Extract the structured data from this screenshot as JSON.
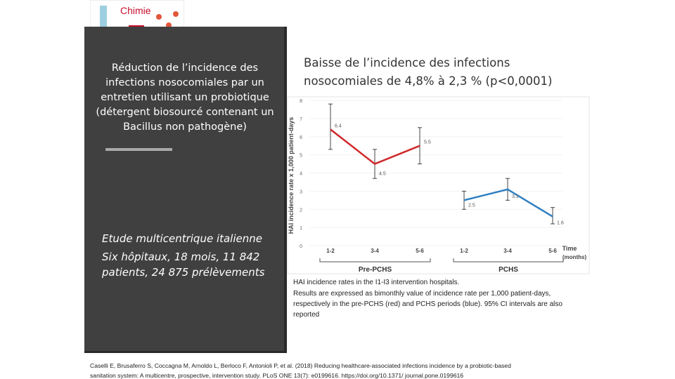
{
  "logo": {
    "label": "Chimie"
  },
  "panel": {
    "summary": "Réduction de l’incidence des infections nosocomiales par un entretien utilisant un probiotique (détergent biosourcé contenant un Bacillus non pathogène)",
    "study": [
      "Etude multicentrique italienne",
      "Six hôpitaux, 18 mois, 11 842",
      "patients, 24 875 prélèvements"
    ]
  },
  "title": [
    "Baisse de l’incidence des infections",
    "nosocomiales de 4,8% à 2,3 % (p<0,0001)"
  ],
  "chart_data": {
    "type": "line",
    "ylabel": "HAI incidence rate x 1,000 patient-days",
    "xlabel": "Time",
    "xlabel_unit": "(months)",
    "categories": [
      "1-2",
      "3-4",
      "5-6",
      "1-2",
      "3-4",
      "5-6"
    ],
    "groups": [
      "Pre-PCHS",
      "PCHS"
    ],
    "ylim": [
      0,
      8
    ],
    "yticks": [
      0,
      1,
      2,
      3,
      4,
      5,
      6,
      7,
      8
    ],
    "series": [
      {
        "name": "Pre-PCHS",
        "color": "#d0282a",
        "values": [
          6.4,
          4.5,
          5.5,
          null,
          null,
          null
        ],
        "lower": [
          5.3,
          3.7,
          4.5,
          null,
          null,
          null
        ],
        "upper": [
          7.8,
          5.3,
          6.5,
          null,
          null,
          null
        ]
      },
      {
        "name": "PCHS",
        "color": "#2f7fc1",
        "values": [
          null,
          null,
          null,
          2.5,
          3.1,
          1.6
        ],
        "lower": [
          null,
          null,
          null,
          2.0,
          2.5,
          1.2
        ],
        "upper": [
          null,
          null,
          null,
          3.0,
          3.7,
          2.1
        ]
      }
    ]
  },
  "caption": [
    "HAI incidence rates in the I1-I3 intervention hospitals.",
    "Results are expressed as bimonthly value of incidence rate per 1,000 patient-days,",
    "respectively in the pre-PCHS (red) and PCHS periods (blue). 95% CI intervals are also",
    "reported"
  ],
  "citation": [
    "Caselli E, Brusaferro S, Coccagna M, Arnoldo L, Berloco F, Antonioli P, et al. (2018) Reducing healthcare-associated infections incidence by a probiotic-based",
    "sanitation system: A multicentre, prospective, intervention study. PLoS ONE 13(7): e0199616. https://doi.org/10.1371/ journal.pone.0199616"
  ]
}
